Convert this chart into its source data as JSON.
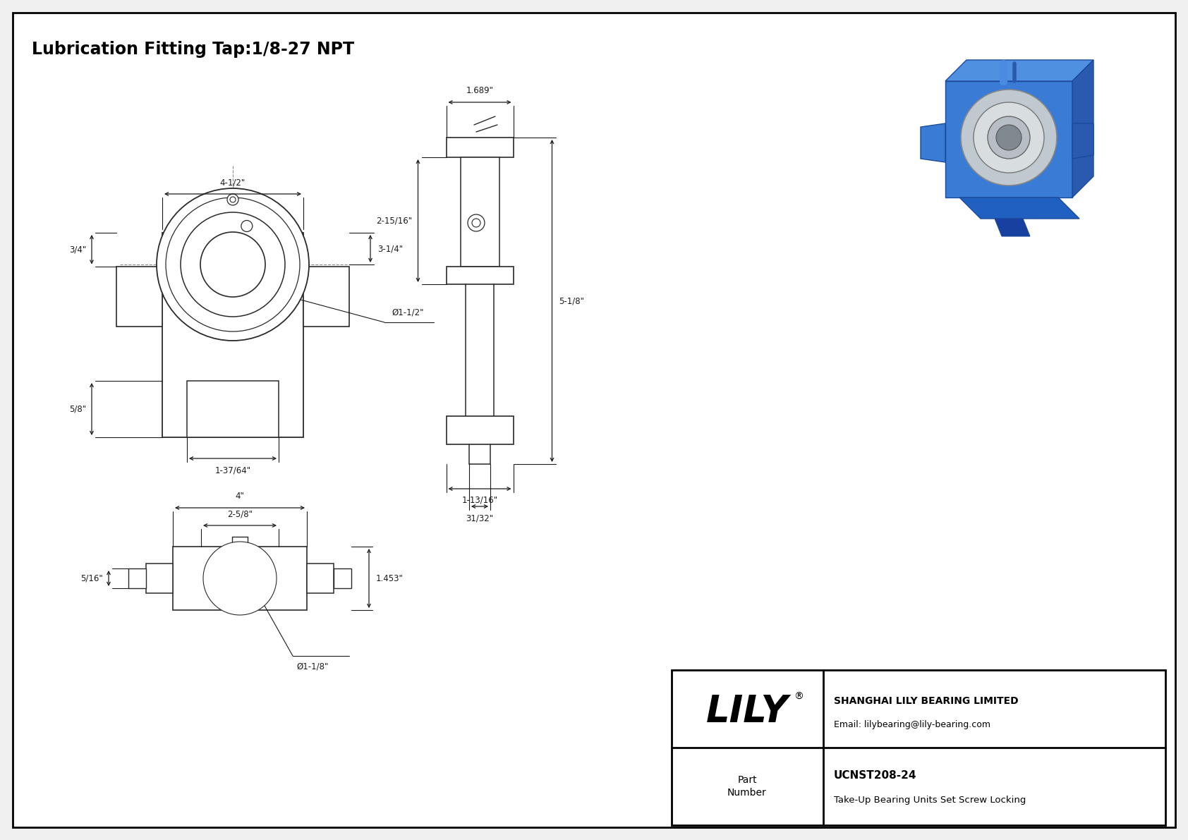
{
  "title": "Lubrication Fitting Tap:1/8-27 NPT",
  "bg_color": "#f0f0f0",
  "inner_bg": "#ffffff",
  "line_color": "#2a2a2a",
  "dim_color": "#1a1a1a",
  "dim_fontsize": 8.5,
  "title_fontsize": 17,
  "annotations": {
    "top_width": "4-1/2\"",
    "right_height_upper": "3-1/4\"",
    "left_height": "3/4\"",
    "bore_dia": "Ø1-1/2\"",
    "slot_width": "1-37/64\"",
    "slot_height": "5/8\"",
    "side_width": "1.689\"",
    "side_h1": "2-15/16\"",
    "side_h2": "5-1/8\"",
    "side_base_w": "1-13/16\"",
    "side_base_slot": "31/32\"",
    "bot_width": "4\"",
    "bot_inner": "2-5/8\"",
    "bot_height": "1.453\"",
    "bot_slot": "5/16\"",
    "bot_bore": "Ø1-1/8\"",
    "part_number": "UCNST208-24",
    "part_desc": "Take-Up Bearing Units Set Screw Locking",
    "company": "SHANGHAI LILY BEARING LIMITED",
    "email": "Email: lilybearing@lily-bearing.com",
    "lily_text": "LILY",
    "part_label": "Part\nNumber",
    "reg_symbol": "®"
  }
}
